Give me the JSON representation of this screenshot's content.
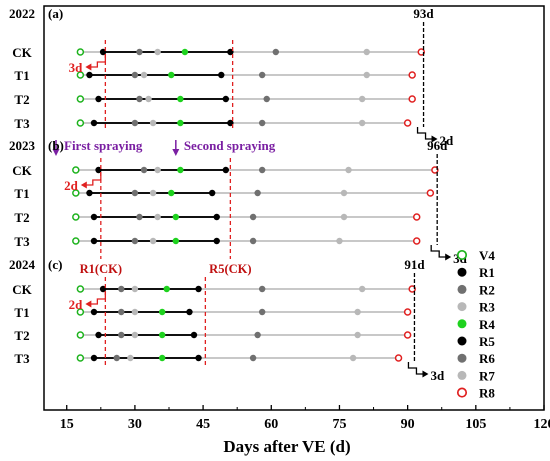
{
  "chart_data": {
    "type": "scatter",
    "xlabel": "Days after VE (d)",
    "xlim": [
      10,
      120
    ],
    "xticks": [
      15,
      30,
      45,
      60,
      75,
      90,
      105,
      120
    ],
    "stages": [
      "V4",
      "R1",
      "R2",
      "R3",
      "R4",
      "R5",
      "R6",
      "R7",
      "R8"
    ],
    "stage_colors": {
      "V4": "#1db31d",
      "R1": "#000000",
      "R2": "#707070",
      "R3": "#b8b8b8",
      "R4": "#1ed21e",
      "R5": "#000000",
      "R6": "#707070",
      "R7": "#b8b8b8",
      "R8": "#e02020"
    },
    "stage_hollow": {
      "V4": true,
      "R8": true
    },
    "legend_position": "right",
    "panels": [
      {
        "year": "2022",
        "tag": "(a)",
        "treatments": [
          {
            "name": "CK",
            "values": {
              "V4": 18,
              "R1": 23,
              "R2": 31,
              "R3": 35,
              "R4": 41,
              "R5": 51,
              "R6": 61,
              "R7": 81,
              "R8": 93
            }
          },
          {
            "name": "T1",
            "values": {
              "V4": 18,
              "R1": 20,
              "R2": 30,
              "R3": 32,
              "R4": 38,
              "R5": 49,
              "R6": 58,
              "R7": 81,
              "R8": 91
            }
          },
          {
            "name": "T2",
            "values": {
              "V4": 18,
              "R1": 22,
              "R2": 31,
              "R3": 33,
              "R4": 40,
              "R5": 50,
              "R6": 59,
              "R7": 80,
              "R8": 91
            }
          },
          {
            "name": "T3",
            "values": {
              "V4": 18,
              "R1": 21,
              "R2": 30,
              "R3": 34,
              "R4": 40,
              "R5": 51,
              "R6": 58,
              "R7": 80,
              "R8": 90
            }
          }
        ],
        "vlines": [
          23.5,
          51.5
        ],
        "end_line": 93.5,
        "annotations": {
          "duration": "93d",
          "left_shift": "3d",
          "right_shift": "2d"
        }
      },
      {
        "year": "2023",
        "tag": "(b)",
        "treatments": [
          {
            "name": "CK",
            "values": {
              "V4": 17,
              "R1": 22,
              "R2": 32,
              "R3": 35,
              "R4": 40,
              "R5": 50,
              "R6": 58,
              "R7": 77,
              "R8": 96
            }
          },
          {
            "name": "T1",
            "values": {
              "V4": 17,
              "R1": 20,
              "R2": 30,
              "R3": 34,
              "R4": 38,
              "R5": 47,
              "R6": 57,
              "R7": 76,
              "R8": 95
            }
          },
          {
            "name": "T2",
            "values": {
              "V4": 17,
              "R1": 21,
              "R2": 31,
              "R3": 35,
              "R4": 39,
              "R5": 48,
              "R6": 56,
              "R7": 76,
              "R8": 92
            }
          },
          {
            "name": "T3",
            "values": {
              "V4": 17,
              "R1": 21,
              "R2": 30,
              "R3": 34,
              "R4": 39,
              "R5": 48,
              "R6": 56,
              "R7": 75,
              "R8": 92
            }
          }
        ],
        "vlines": [
          22.5,
          51
        ],
        "end_line": 96.5,
        "annotations": {
          "duration": "96d",
          "left_shift": "2d",
          "right_shift": "3d"
        },
        "spray_labels": [
          "First spraying",
          "Second spraying"
        ],
        "ck_labels": [
          "R1(CK)",
          "R5(CK)"
        ]
      },
      {
        "year": "2024",
        "tag": "(c)",
        "treatments": [
          {
            "name": "CK",
            "values": {
              "V4": 18,
              "R1": 23,
              "R2": 27,
              "R3": 30,
              "R4": 37,
              "R5": 44,
              "R6": 58,
              "R7": 80,
              "R8": 91
            }
          },
          {
            "name": "T1",
            "values": {
              "V4": 18,
              "R1": 21,
              "R2": 27,
              "R3": 30,
              "R4": 36,
              "R5": 42,
              "R6": 58,
              "R7": 79,
              "R8": 90
            }
          },
          {
            "name": "T2",
            "values": {
              "V4": 18,
              "R1": 22,
              "R2": 27,
              "R3": 30,
              "R4": 36,
              "R5": 43,
              "R6": 57,
              "R7": 79,
              "R8": 90
            }
          },
          {
            "name": "T3",
            "values": {
              "V4": 18,
              "R1": 21,
              "R2": 26,
              "R3": 29,
              "R4": 36,
              "R5": 44,
              "R6": 56,
              "R7": 78,
              "R8": 88
            }
          }
        ],
        "vlines": [
          23.5,
          45.5
        ],
        "end_line": 91.5,
        "annotations": {
          "duration": "91d",
          "left_shift": "2d",
          "right_shift": "3d"
        }
      }
    ]
  }
}
